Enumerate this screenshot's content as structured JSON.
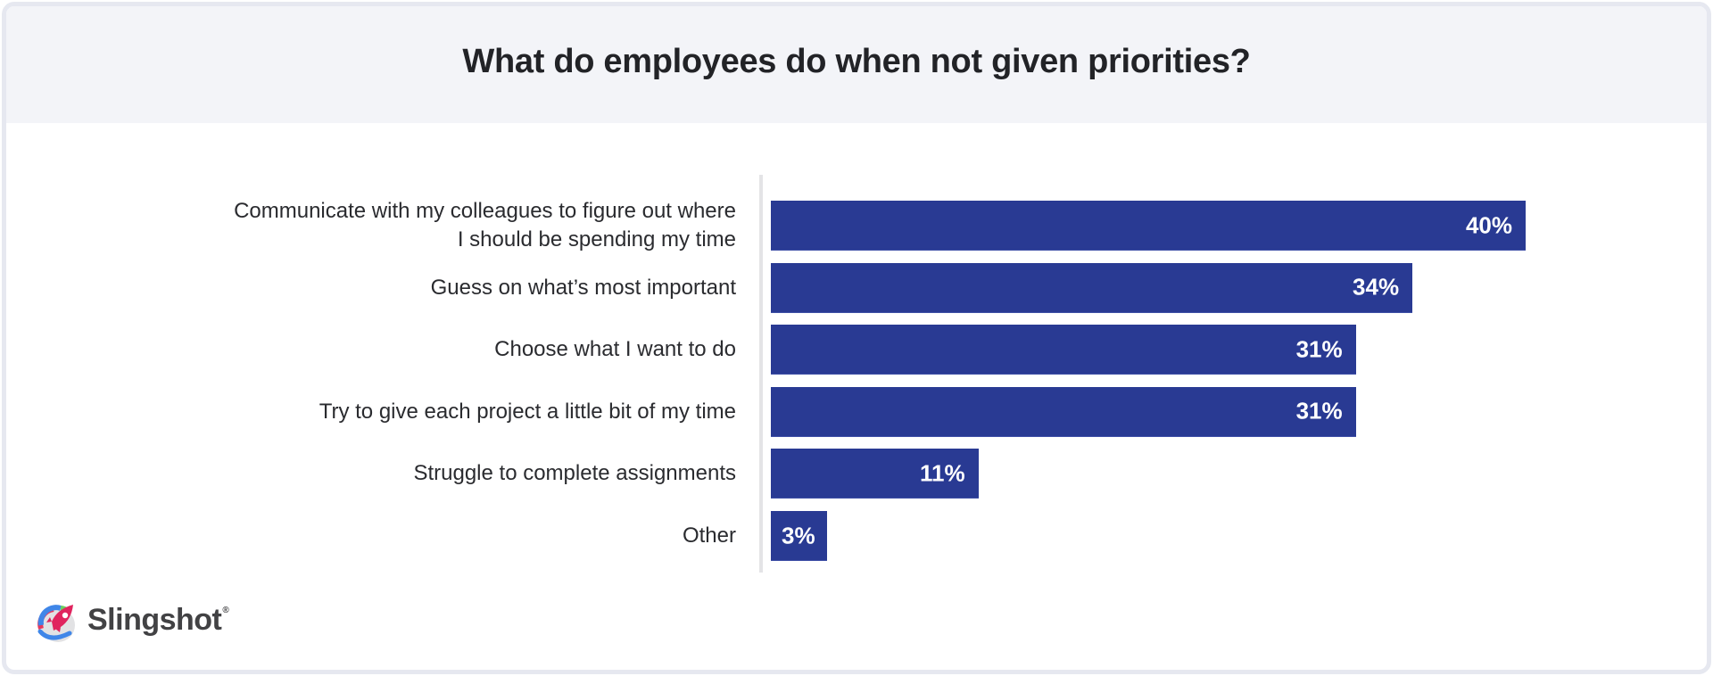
{
  "header": {
    "title": "What do employees do when not given priorities?"
  },
  "chart_data": {
    "type": "bar",
    "orientation": "horizontal",
    "title": "What do employees do when not given priorities?",
    "xlabel": "",
    "ylabel": "",
    "xlim": [
      0,
      40
    ],
    "grid": false,
    "categories": [
      "Communicate with my colleagues to figure out where\nI should be spending my time",
      "Guess on what’s most important",
      "Choose what I want to do",
      "Try to give each project a little bit of my time",
      "Struggle to complete assignments",
      "Other"
    ],
    "values": [
      40,
      34,
      31,
      31,
      11,
      3
    ],
    "value_labels": [
      "40%",
      "34%",
      "31%",
      "31%",
      "11%",
      "3%"
    ],
    "unit": "%",
    "bar_color": "#293a93"
  },
  "branding": {
    "logo_icon": "slingshot-rocket-logo-icon",
    "name": "Slingshot",
    "trademark": "®"
  },
  "colors": {
    "bar": "#293a93",
    "header_bg": "#f3f4f8",
    "border": "#e6e8f0",
    "text": "#2a2b2f",
    "logo_text": "#424244"
  }
}
